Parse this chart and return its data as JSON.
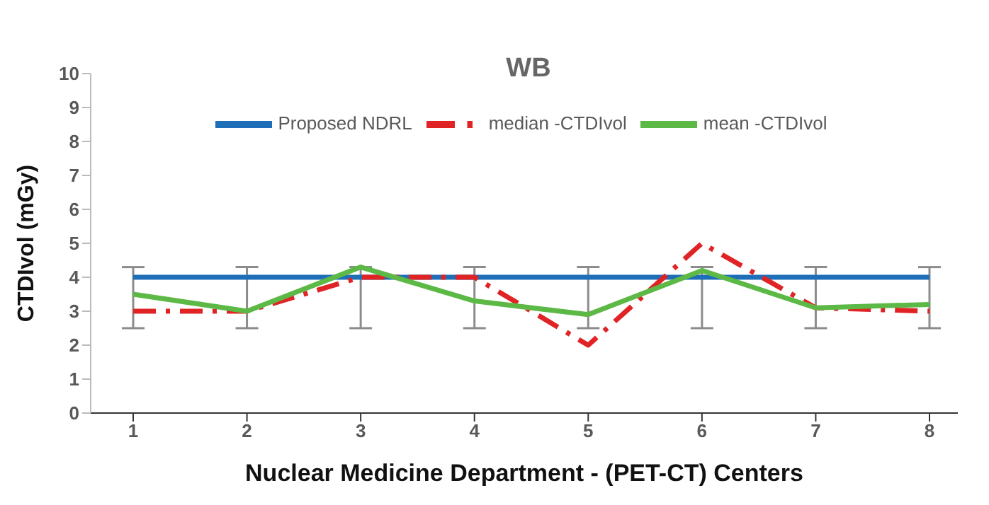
{
  "chart_data": {
    "type": "line",
    "title": "WB",
    "xlabel": "Nuclear Medicine Department - (PET-CT) Centers",
    "ylabel": "CTDIvol (mGy)",
    "categories": [
      "1",
      "2",
      "3",
      "4",
      "5",
      "6",
      "7",
      "8"
    ],
    "series": [
      {
        "name": "Proposed NDRL",
        "color": "#1f6fb8",
        "values": [
          4,
          4,
          4,
          4,
          4,
          4,
          4,
          4
        ],
        "errors": [
          [
            2.5,
            4.3
          ],
          [
            2.5,
            4.3
          ],
          [
            2.5,
            4.3
          ],
          [
            2.5,
            4.3
          ],
          [
            2.5,
            4.3
          ],
          [
            2.5,
            4.3
          ],
          [
            2.5,
            4.3
          ],
          [
            2.5,
            4.3
          ]
        ]
      },
      {
        "name": "median -CTDIvol",
        "color": "#e02426",
        "line_style": "dashed",
        "values": [
          3,
          3,
          4,
          4,
          2,
          5,
          3.1,
          3
        ]
      },
      {
        "name": "mean -CTDIvol",
        "color": "#5cb946",
        "values": [
          3.5,
          3,
          4.3,
          3.3,
          2.9,
          4.2,
          3.1,
          3.2
        ]
      }
    ],
    "ylim": [
      0,
      10
    ],
    "yticks": [
      0,
      1,
      2,
      3,
      4,
      5,
      6,
      7,
      8,
      9,
      10
    ],
    "legend": "top",
    "marker": "none"
  }
}
